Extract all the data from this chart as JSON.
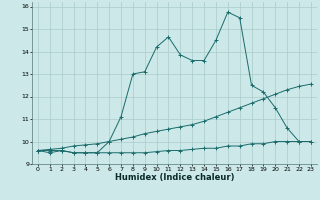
{
  "xlabel": "Humidex (Indice chaleur)",
  "bg_color": "#cce8e8",
  "grid_color": "#aacccc",
  "line_color": "#1a6b6b",
  "xlim": [
    -0.5,
    23.5
  ],
  "ylim": [
    9.0,
    16.2
  ],
  "xticks": [
    0,
    1,
    2,
    3,
    4,
    5,
    6,
    7,
    8,
    9,
    10,
    11,
    12,
    13,
    14,
    15,
    16,
    17,
    18,
    19,
    20,
    21,
    22,
    23
  ],
  "yticks": [
    9,
    10,
    11,
    12,
    13,
    14,
    15,
    16
  ],
  "line1_x": [
    0,
    1,
    2,
    3,
    4,
    5,
    6,
    7,
    8,
    9,
    10,
    11,
    12,
    13,
    14,
    15,
    16,
    17,
    18,
    19,
    20,
    21,
    22,
    23
  ],
  "line1_y": [
    9.6,
    9.5,
    9.6,
    9.5,
    9.5,
    9.5,
    9.5,
    9.5,
    9.5,
    9.5,
    9.55,
    9.6,
    9.6,
    9.65,
    9.7,
    9.7,
    9.8,
    9.8,
    9.9,
    9.9,
    10.0,
    10.0,
    10.0,
    10.0
  ],
  "line2_x": [
    0,
    1,
    2,
    3,
    4,
    5,
    6,
    7,
    8,
    9,
    10,
    11,
    12,
    13,
    14,
    15,
    16,
    17,
    18,
    19,
    20,
    21,
    22,
    23
  ],
  "line2_y": [
    9.6,
    9.65,
    9.7,
    9.8,
    9.85,
    9.9,
    10.0,
    10.1,
    10.2,
    10.35,
    10.45,
    10.55,
    10.65,
    10.75,
    10.9,
    11.1,
    11.3,
    11.5,
    11.7,
    11.9,
    12.1,
    12.3,
    12.45,
    12.55
  ],
  "line3_x": [
    0,
    1,
    2,
    3,
    4,
    5,
    6,
    7,
    8,
    9,
    10,
    11,
    12,
    13,
    14,
    15,
    16,
    17,
    18,
    19,
    20,
    21,
    22,
    23
  ],
  "line3_y": [
    9.6,
    9.6,
    9.6,
    9.5,
    9.5,
    9.5,
    10.0,
    11.1,
    13.0,
    13.1,
    14.2,
    14.65,
    13.85,
    13.6,
    13.6,
    14.5,
    15.75,
    15.5,
    12.5,
    12.2,
    11.5,
    10.6,
    10.0,
    10.0
  ]
}
